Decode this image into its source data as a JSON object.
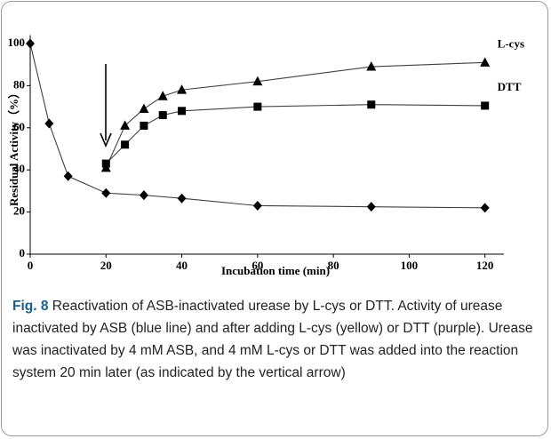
{
  "chart_data": {
    "type": "line",
    "xlabel": "Incubation time (min)",
    "ylabel": "Residual Activity（%）",
    "xlim": [
      0,
      125
    ],
    "ylim": [
      0,
      104
    ],
    "xticks": [
      0,
      20,
      40,
      60,
      80,
      100,
      120
    ],
    "yticks": [
      0,
      20,
      40,
      60,
      80,
      100
    ],
    "series": [
      {
        "color": "#000000",
        "marker": "diamond",
        "x": [
          0,
          5,
          10,
          20,
          30,
          40,
          60,
          90,
          120
        ],
        "values": [
          100,
          62,
          37,
          29,
          28,
          26.5,
          23,
          22.5,
          22
        ]
      },
      {
        "name": "L-cys",
        "color": "#000000",
        "marker": "triangle",
        "x": [
          20,
          25,
          30,
          35,
          40,
          60,
          90,
          120
        ],
        "values": [
          41,
          61,
          69,
          75,
          78,
          82,
          89,
          91
        ]
      },
      {
        "name": "DTT",
        "color": "#000000",
        "marker": "square",
        "x": [
          20,
          25,
          30,
          35,
          40,
          60,
          90,
          120
        ],
        "values": [
          43,
          52,
          61,
          66,
          68,
          70,
          71,
          70.5
        ]
      }
    ]
  },
  "caption": {
    "label": "Fig. 8",
    "text": "Reactivation of ASB-inactivated urease by L-cys or DTT. Activity of urease inactivated by ASB (blue line) and after adding L-cys (yellow) or DTT (purple). Urease was inactivated by 4 mM ASB, and 4 mM L-cys or DTT was added into the reaction system 20 min later (as indicated by the vertical arrow)"
  }
}
